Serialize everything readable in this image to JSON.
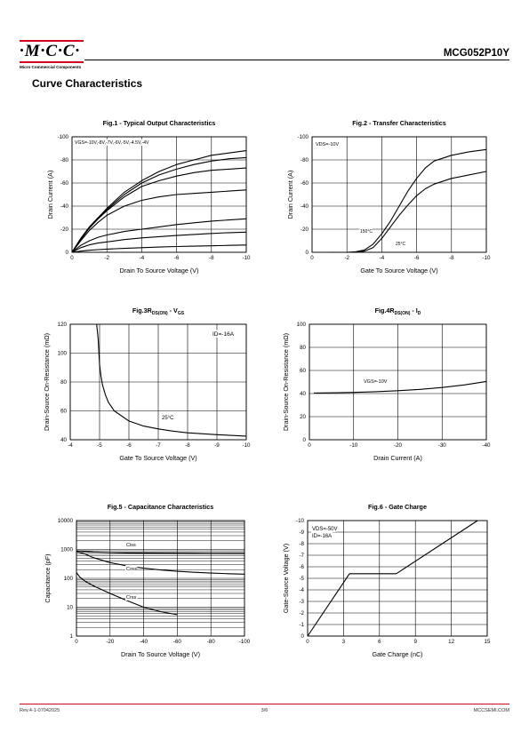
{
  "header": {
    "logo_text": "·M·C·C·",
    "logo_subtitle": "Micro Commercial Components",
    "part_number": "MCG052P10Y"
  },
  "page_title": "Curve Characteristics",
  "footer": {
    "revision": "Rev.4-1-07042025",
    "page": "3/6",
    "website": "MCCSEMI.COM"
  },
  "colors": {
    "accent": "#d0021b",
    "grid": "#000000",
    "curve": "#000000"
  },
  "chart_data": [
    {
      "id": "fig1",
      "type": "line",
      "title": "Fig.1 - Typical Output Characteristics",
      "xlabel": "Drain To Source Voltage (V)",
      "ylabel": "Drain Current (A)",
      "xlim": [
        0,
        -10
      ],
      "ylim": [
        0,
        -100
      ],
      "xticks": [
        "0",
        "-2",
        "-4",
        "-6",
        "-8",
        "-10"
      ],
      "yticks": [
        "0",
        "-20",
        "-40",
        "-60",
        "-80",
        "-100"
      ],
      "annotations": [
        "VGS=-10V,-8V,-7V,-6V,-5V,-4.5V,-4V"
      ],
      "x": [
        0,
        -0.5,
        -1,
        -1.5,
        -2,
        -3,
        -4,
        -5,
        -6,
        -7,
        -8,
        -9,
        -10
      ],
      "series": [
        {
          "values": [
            0,
            -12,
            -22,
            -30,
            -38,
            -52,
            -62,
            -70,
            -76,
            -80,
            -84,
            -86,
            -88
          ]
        },
        {
          "values": [
            0,
            -12,
            -22,
            -30,
            -37,
            -50,
            -60,
            -67,
            -72,
            -76,
            -79,
            -81,
            -82
          ]
        },
        {
          "values": [
            0,
            -11,
            -21,
            -29,
            -36,
            -48,
            -57,
            -62,
            -66,
            -69,
            -71,
            -72,
            -73
          ]
        },
        {
          "values": [
            0,
            -10,
            -19,
            -26,
            -32,
            -40,
            -45,
            -48,
            -50,
            -51,
            -52,
            -53,
            -54
          ]
        },
        {
          "values": [
            0,
            -6,
            -10,
            -13,
            -15,
            -18,
            -20,
            -22,
            -24,
            -25.5,
            -27,
            -28,
            -29
          ]
        },
        {
          "values": [
            0,
            -4,
            -6.5,
            -8,
            -9,
            -11,
            -12.5,
            -13.5,
            -14.5,
            -15.5,
            -16.3,
            -17,
            -17.5
          ]
        },
        {
          "values": [
            0,
            -1,
            -1.8,
            -2.3,
            -2.8,
            -3.4,
            -4,
            -4.5,
            -5,
            -5.3,
            -5.6,
            -6,
            -6.3
          ]
        }
      ]
    },
    {
      "id": "fig2",
      "type": "line",
      "title": "Fig.2 - Transfer Characteristics",
      "xlabel": "Gate To Source Voltage (V)",
      "ylabel": "Drain Current (A)",
      "xlim": [
        0,
        -10
      ],
      "ylim": [
        0,
        -100
      ],
      "xticks": [
        "0",
        "-2",
        "-4",
        "-6",
        "-8",
        "-10"
      ],
      "yticks": [
        "0",
        "-20",
        "-40",
        "-60",
        "-80",
        "-100"
      ],
      "annotations": [
        "VDS=-10V",
        "150°C",
        "25°C"
      ],
      "series": [
        {
          "name": "150°C",
          "x": [
            -1,
            -2,
            -2.5,
            -3,
            -3.5,
            -4,
            -4.5,
            -5,
            -5.5,
            -6,
            -6.5,
            -7,
            -8,
            -9,
            -10
          ],
          "values": [
            0,
            0,
            -0.5,
            -2,
            -7,
            -16,
            -27,
            -40,
            -53,
            -64,
            -73,
            -79,
            -84,
            -87,
            -89
          ]
        },
        {
          "name": "25°C",
          "x": [
            -2,
            -2.5,
            -3,
            -3.5,
            -4,
            -4.5,
            -5,
            -5.5,
            -6,
            -6.5,
            -7,
            -8,
            -9,
            -10
          ],
          "values": [
            0,
            0,
            -1,
            -4,
            -12,
            -22,
            -32,
            -41,
            -49,
            -55,
            -59,
            -64,
            -67,
            -70
          ]
        }
      ]
    },
    {
      "id": "fig3",
      "type": "line",
      "title": "Fig.3 - RDS(ON) - VGS",
      "title_main": "R",
      "title_sub": "DS(ON)",
      "title_mid": " - V",
      "title_sub2": "GS",
      "xlabel": "Gate To Source Voltage (V)",
      "ylabel": "Drain-Source On-Resistance (mΩ)",
      "xlim": [
        -4,
        -10
      ],
      "ylim": [
        40,
        120
      ],
      "xticks": [
        "-4",
        "-5",
        "-6",
        "-7",
        "-8",
        "-9",
        "-10"
      ],
      "yticks": [
        "40",
        "60",
        "80",
        "100",
        "120"
      ],
      "annotations": [
        "ID=-16A",
        "25°C"
      ],
      "series": [
        {
          "name": "25°C",
          "x": [
            -4.9,
            -4.95,
            -5,
            -5.05,
            -5.1,
            -5.2,
            -5.3,
            -5.5,
            -6,
            -6.5,
            -7,
            -7.5,
            -8,
            -9,
            -10
          ],
          "values": [
            120,
            110,
            92,
            84,
            78,
            71,
            66,
            60,
            53,
            49.5,
            47.5,
            46,
            44.8,
            43.5,
            42.5
          ]
        }
      ]
    },
    {
      "id": "fig4",
      "type": "line",
      "title": "Fig.4 - RDS(ON) - ID",
      "title_main": "R",
      "title_sub": "DS(ON)",
      "title_mid": " - I",
      "title_sub2": "D",
      "xlabel": "Drain Current (A)",
      "ylabel": "Drain-Source On-Resistance (mΩ)",
      "xlim": [
        0,
        -40
      ],
      "ylim": [
        0,
        100
      ],
      "xticks": [
        "0",
        "-10",
        "-20",
        "-30",
        "-40"
      ],
      "yticks": [
        "0",
        "20",
        "40",
        "60",
        "80",
        "100"
      ],
      "annotations": [
        "VGS=-10V"
      ],
      "series": [
        {
          "name": "VGS=-10V",
          "x": [
            -1,
            -5,
            -10,
            -15,
            -20,
            -25,
            -30,
            -35,
            -40
          ],
          "values": [
            40.5,
            40.6,
            41,
            41.6,
            42.5,
            43.6,
            45.2,
            47.5,
            50.5
          ]
        }
      ]
    },
    {
      "id": "fig5",
      "type": "line",
      "title": "Fig.5 - Capacitance Characteristics",
      "xlabel": "Drain To Source Voltage (V)",
      "ylabel": "Capacitance (pF)",
      "xlim": [
        0,
        -100
      ],
      "ylim": [
        1,
        10000
      ],
      "yscale": "log",
      "xticks": [
        "0",
        "-20",
        "-40",
        "-60",
        "-80",
        "-100"
      ],
      "yticks": [
        "1",
        "10",
        "100",
        "1000",
        "10000"
      ],
      "annotations": [
        "Ciss",
        "Coss",
        "Crss"
      ],
      "series": [
        {
          "name": "Ciss",
          "x": [
            0,
            -10,
            -20,
            -30,
            -40,
            -50,
            -60,
            -70,
            -80,
            -90,
            -100
          ],
          "values": [
            900,
            820,
            780,
            760,
            750,
            740,
            735,
            730,
            725,
            722,
            720
          ]
        },
        {
          "name": "Coss",
          "x": [
            0,
            -5,
            -10,
            -20,
            -30,
            -40,
            -50,
            -60,
            -70,
            -80,
            -90,
            -100
          ],
          "values": [
            850,
            700,
            520,
            350,
            270,
            225,
            195,
            175,
            162,
            152,
            145,
            140
          ]
        },
        {
          "name": "Crss",
          "x": [
            0,
            -2,
            -5,
            -10,
            -20,
            -30,
            -40,
            -50,
            -60
          ],
          "values": [
            160,
            110,
            80,
            55,
            30,
            17,
            10,
            7,
            5.5
          ]
        }
      ]
    },
    {
      "id": "fig6",
      "type": "line",
      "title": "Fig.6 - Gate Charge",
      "xlabel": "Gate Charge (nC)",
      "ylabel": "Gate-Source Voltage (V)",
      "xlim": [
        0,
        15
      ],
      "ylim": [
        0,
        -10
      ],
      "xticks": [
        "0",
        "3",
        "6",
        "9",
        "12",
        "15"
      ],
      "yticks": [
        "0",
        "-1",
        "-2",
        "-3",
        "-4",
        "-5",
        "-6",
        "-7",
        "-8",
        "-9",
        "-10"
      ],
      "annotations": [
        "VDS=-50V",
        "ID=-16A"
      ],
      "series": [
        {
          "x": [
            0,
            3.5,
            7.4,
            14.2
          ],
          "values": [
            0,
            -5.4,
            -5.4,
            -10
          ]
        }
      ]
    }
  ]
}
